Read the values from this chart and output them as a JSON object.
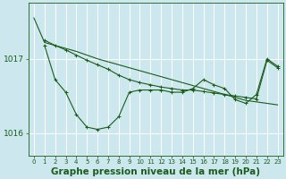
{
  "background_color": "#cce8ee",
  "grid_color": "#ffffff",
  "line_color": "#1a5c1a",
  "xlabel": "Graphe pression niveau de la mer (hPa)",
  "xlabel_fontsize": 7.5,
  "xlim": [
    -0.5,
    23.5
  ],
  "ylim": [
    1015.7,
    1017.75
  ],
  "yticks": [
    1016,
    1017
  ],
  "xticks": [
    0,
    1,
    2,
    3,
    4,
    5,
    6,
    7,
    8,
    9,
    10,
    11,
    12,
    13,
    14,
    15,
    16,
    17,
    18,
    19,
    20,
    21,
    22,
    23
  ],
  "series1_x": [
    0,
    1,
    2,
    3,
    4,
    5,
    6,
    7,
    8,
    9,
    10,
    11,
    12,
    13,
    14,
    15,
    16,
    17,
    18,
    19,
    20,
    21,
    22,
    23
  ],
  "series1_y": [
    1017.55,
    1017.22,
    1017.18,
    1017.14,
    1017.1,
    1017.05,
    1017.0,
    1016.96,
    1016.92,
    1016.88,
    1016.84,
    1016.8,
    1016.76,
    1016.72,
    1016.68,
    1016.64,
    1016.6,
    1016.56,
    1016.52,
    1016.48,
    1016.44,
    1016.42,
    1016.4,
    1016.38
  ],
  "series2_x": [
    1,
    2,
    3,
    4,
    5,
    6,
    7,
    8,
    9,
    10,
    11,
    12,
    13,
    14,
    15,
    16,
    17,
    18,
    19,
    20,
    21,
    22,
    23
  ],
  "series2_y": [
    1017.18,
    1016.72,
    1016.55,
    1016.25,
    1016.08,
    1016.05,
    1016.08,
    1016.22,
    1016.55,
    1016.58,
    1016.58,
    1016.58,
    1016.55,
    1016.55,
    1016.6,
    1016.72,
    1016.65,
    1016.6,
    1016.45,
    1016.4,
    1016.52,
    1017.0,
    1016.9
  ],
  "series3_x": [
    1,
    2,
    3,
    4,
    5,
    6,
    7,
    8,
    9,
    10,
    11,
    12,
    13,
    14,
    15,
    16,
    17,
    18,
    19,
    20,
    21,
    22,
    23
  ],
  "series3_y": [
    1017.25,
    1017.18,
    1017.12,
    1017.05,
    1016.98,
    1016.92,
    1016.86,
    1016.78,
    1016.72,
    1016.68,
    1016.65,
    1016.62,
    1016.6,
    1016.58,
    1016.58,
    1016.56,
    1016.54,
    1016.52,
    1016.5,
    1016.48,
    1016.46,
    1016.98,
    1016.88
  ]
}
